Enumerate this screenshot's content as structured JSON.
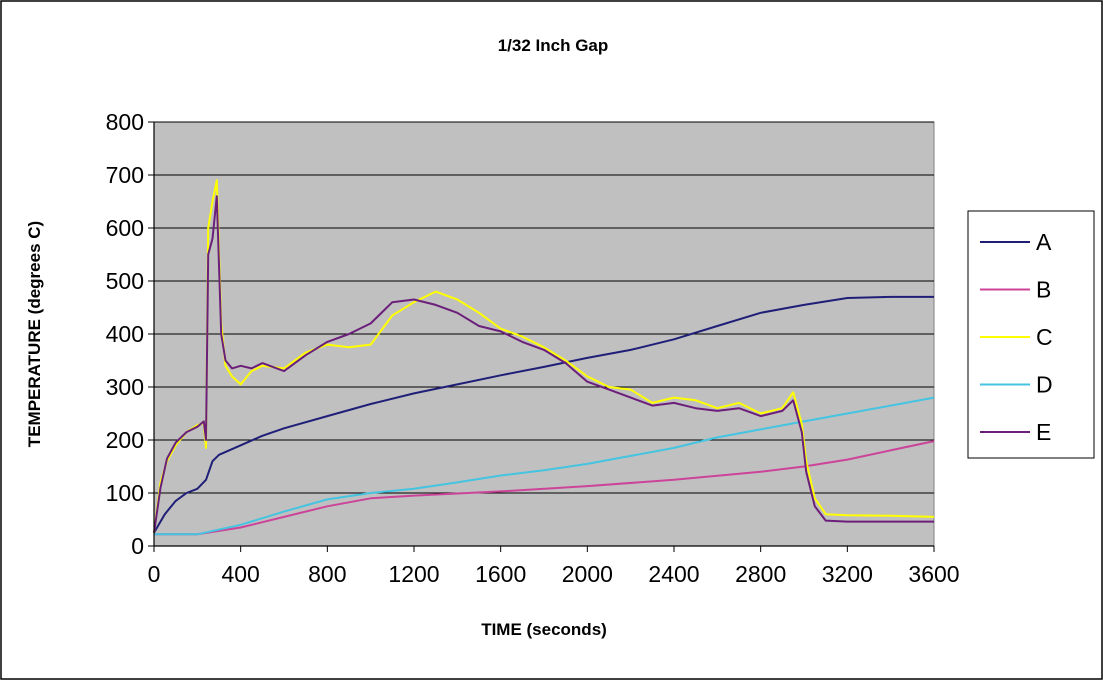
{
  "chart_data": {
    "type": "line",
    "title": "1/32 Inch Gap",
    "xlabel": "TIME (seconds)",
    "ylabel": "TEMPERATURE (degrees C)",
    "xlim": [
      0,
      3600
    ],
    "ylim": [
      0,
      800
    ],
    "x_ticks": [
      0,
      400,
      800,
      1200,
      1600,
      2000,
      2400,
      2800,
      3200,
      3600
    ],
    "y_ticks": [
      0,
      100,
      200,
      300,
      400,
      500,
      600,
      700,
      800
    ],
    "grid": "horizontal",
    "legend_position": "right",
    "plot_background": "#c0c0c0",
    "series": [
      {
        "name": "A",
        "color": "#1f1f78",
        "x": [
          0,
          50,
          100,
          150,
          200,
          240,
          270,
          300,
          400,
          500,
          600,
          800,
          1000,
          1200,
          1400,
          1600,
          1800,
          2000,
          2200,
          2400,
          2600,
          2800,
          3000,
          3200,
          3400,
          3600
        ],
        "y": [
          25,
          60,
          85,
          100,
          108,
          125,
          160,
          172,
          190,
          208,
          222,
          245,
          268,
          288,
          305,
          322,
          338,
          355,
          370,
          390,
          415,
          440,
          455,
          468,
          470,
          470
        ]
      },
      {
        "name": "B",
        "color": "#cc4499",
        "x": [
          0,
          200,
          400,
          600,
          800,
          1000,
          1200,
          1600,
          2000,
          2400,
          2800,
          3000,
          3200,
          3600
        ],
        "y": [
          22,
          22,
          35,
          55,
          75,
          90,
          95,
          103,
          113,
          125,
          140,
          150,
          163,
          198
        ]
      },
      {
        "name": "C",
        "color": "#ffff00",
        "x": [
          0,
          30,
          60,
          100,
          150,
          200,
          230,
          240,
          250,
          270,
          290,
          310,
          330,
          360,
          400,
          450,
          500,
          600,
          700,
          800,
          900,
          1000,
          1100,
          1200,
          1300,
          1400,
          1500,
          1600,
          1700,
          1800,
          1900,
          2000,
          2100,
          2200,
          2300,
          2400,
          2500,
          2600,
          2700,
          2800,
          2900,
          2950,
          2990,
          3010,
          3050,
          3100,
          3200,
          3400,
          3600
        ],
        "y": [
          25,
          120,
          160,
          190,
          215,
          228,
          232,
          185,
          600,
          650,
          690,
          420,
          340,
          320,
          305,
          330,
          340,
          335,
          365,
          380,
          375,
          380,
          435,
          460,
          480,
          465,
          440,
          410,
          395,
          375,
          350,
          320,
          300,
          295,
          270,
          280,
          275,
          260,
          270,
          250,
          260,
          290,
          230,
          160,
          90,
          60,
          58,
          57,
          55
        ]
      },
      {
        "name": "D",
        "color": "#44c4e0",
        "x": [
          0,
          200,
          400,
          600,
          800,
          1000,
          1200,
          1400,
          1600,
          1800,
          2000,
          2200,
          2400,
          2600,
          2800,
          3000,
          3200,
          3400,
          3600
        ],
        "y": [
          22,
          22,
          40,
          65,
          88,
          100,
          108,
          120,
          133,
          143,
          155,
          170,
          185,
          205,
          220,
          235,
          250,
          265,
          280
        ]
      },
      {
        "name": "E",
        "color": "#6b1f7a",
        "x": [
          0,
          30,
          60,
          100,
          150,
          200,
          230,
          240,
          250,
          270,
          290,
          310,
          330,
          360,
          400,
          450,
          500,
          600,
          700,
          800,
          900,
          1000,
          1100,
          1200,
          1300,
          1400,
          1500,
          1600,
          1700,
          1800,
          1900,
          2000,
          2100,
          2200,
          2300,
          2400,
          2500,
          2600,
          2700,
          2800,
          2900,
          2950,
          2990,
          3010,
          3050,
          3100,
          3200,
          3400,
          3600
        ],
        "y": [
          25,
          110,
          165,
          195,
          215,
          225,
          235,
          200,
          550,
          580,
          660,
          400,
          350,
          335,
          340,
          335,
          345,
          330,
          360,
          385,
          400,
          420,
          460,
          465,
          455,
          440,
          415,
          405,
          385,
          370,
          345,
          310,
          295,
          280,
          265,
          270,
          260,
          255,
          260,
          245,
          255,
          275,
          215,
          140,
          75,
          48,
          46,
          46,
          46
        ]
      }
    ]
  }
}
